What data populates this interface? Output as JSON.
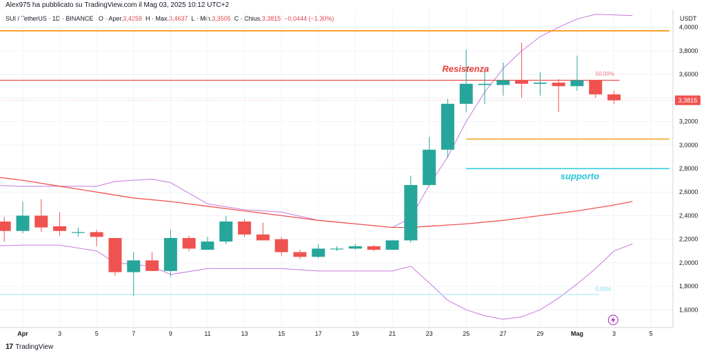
{
  "header": {
    "published_by": "Alex975 ha pubblicato su TradingView.com il Mag 03, 2025 10:12 UTC+2",
    "symbol": "SUI / TetherUS · 1D · BINANCE",
    "open_label": "O · Aper.",
    "open": "3,4259",
    "high_label": "H · Max.",
    "high": "3,4637",
    "low_label": "L · Min.",
    "low": "3,3505",
    "close_label": "C · Chius.",
    "close": "3,3815",
    "change": "−0,0444 (−1,30%)"
  },
  "currency": "USDT",
  "brand": {
    "logo": "17",
    "name": "TradingView"
  },
  "last_price_label": "3,3815",
  "colors": {
    "up": "#26a69a",
    "down": "#ef5350",
    "bb": "#c678dd",
    "ma": "#ef5350",
    "resistance": "#e53935",
    "orange": "#fb8c00",
    "support": "#26c6da",
    "grid": "#f0f3fa"
  },
  "chart_data": {
    "type": "candlestick",
    "symbol": "SUI / TetherUS",
    "timeframe": "1D",
    "ylim": [
      1.45,
      4.15
    ],
    "y_ticks": [
      1.6,
      1.8,
      2.0,
      2.2,
      2.4,
      2.6,
      2.8,
      3.0,
      3.2,
      3.4,
      3.6,
      3.8,
      4.0
    ],
    "y_tick_labels": [
      "1,6000",
      "1,8000",
      "2,0000",
      "2,2000",
      "2,4000",
      "2,6000",
      "2,8000",
      "3,0000",
      "3,2000",
      "3,4000",
      "3,6000",
      "3,8000",
      "4,0000"
    ],
    "x_index_range": [
      -2,
      34
    ],
    "x_ticks": [
      {
        "i": 0,
        "label": "Apr",
        "bold": true
      },
      {
        "i": 2,
        "label": "3"
      },
      {
        "i": 4,
        "label": "5"
      },
      {
        "i": 6,
        "label": "7"
      },
      {
        "i": 8,
        "label": "9"
      },
      {
        "i": 10,
        "label": "11"
      },
      {
        "i": 12,
        "label": "13"
      },
      {
        "i": 14,
        "label": "15"
      },
      {
        "i": 16,
        "label": "17"
      },
      {
        "i": 18,
        "label": "19"
      },
      {
        "i": 20,
        "label": "21"
      },
      {
        "i": 22,
        "label": "23"
      },
      {
        "i": 24,
        "label": "25"
      },
      {
        "i": 26,
        "label": "27"
      },
      {
        "i": 28,
        "label": "29"
      },
      {
        "i": 30,
        "label": "Mag",
        "bold": true
      },
      {
        "i": 32,
        "label": "3"
      },
      {
        "i": 34,
        "label": "5"
      }
    ],
    "candles": [
      {
        "i": -2,
        "o": 2.36,
        "h": 2.38,
        "l": 2.3,
        "c": 2.32
      },
      {
        "i": -1,
        "o": 2.35,
        "h": 2.39,
        "l": 2.18,
        "c": 2.27
      },
      {
        "i": 0,
        "o": 2.27,
        "h": 2.52,
        "l": 2.25,
        "c": 2.4
      },
      {
        "i": 1,
        "o": 2.4,
        "h": 2.54,
        "l": 2.26,
        "c": 2.3
      },
      {
        "i": 2,
        "o": 2.31,
        "h": 2.43,
        "l": 2.23,
        "c": 2.27
      },
      {
        "i": 3,
        "o": 2.26,
        "h": 2.3,
        "l": 2.22,
        "c": 2.26
      },
      {
        "i": 4,
        "o": 2.26,
        "h": 2.28,
        "l": 2.14,
        "c": 2.22
      },
      {
        "i": 5,
        "o": 2.21,
        "h": 2.21,
        "l": 1.89,
        "c": 1.92
      },
      {
        "i": 6,
        "o": 1.92,
        "h": 2.09,
        "l": 1.72,
        "c": 2.02
      },
      {
        "i": 7,
        "o": 2.02,
        "h": 2.09,
        "l": 1.93,
        "c": 1.93
      },
      {
        "i": 8,
        "o": 1.93,
        "h": 2.28,
        "l": 1.88,
        "c": 2.21
      },
      {
        "i": 9,
        "o": 2.21,
        "h": 2.23,
        "l": 2.1,
        "c": 2.12
      },
      {
        "i": 10,
        "o": 2.11,
        "h": 2.22,
        "l": 2.11,
        "c": 2.18
      },
      {
        "i": 11,
        "o": 2.18,
        "h": 2.4,
        "l": 2.16,
        "c": 2.35
      },
      {
        "i": 12,
        "o": 2.35,
        "h": 2.37,
        "l": 2.22,
        "c": 2.24
      },
      {
        "i": 13,
        "o": 2.24,
        "h": 2.34,
        "l": 2.19,
        "c": 2.19
      },
      {
        "i": 14,
        "o": 2.2,
        "h": 2.22,
        "l": 2.06,
        "c": 2.09
      },
      {
        "i": 15,
        "o": 2.09,
        "h": 2.11,
        "l": 2.03,
        "c": 2.05
      },
      {
        "i": 16,
        "o": 2.05,
        "h": 2.16,
        "l": 2.04,
        "c": 2.12
      },
      {
        "i": 17,
        "o": 2.12,
        "h": 2.14,
        "l": 2.1,
        "c": 2.12
      },
      {
        "i": 18,
        "o": 2.12,
        "h": 2.16,
        "l": 2.11,
        "c": 2.14
      },
      {
        "i": 19,
        "o": 2.14,
        "h": 2.15,
        "l": 2.1,
        "c": 2.11
      },
      {
        "i": 20,
        "o": 2.11,
        "h": 2.19,
        "l": 2.11,
        "c": 2.19
      },
      {
        "i": 21,
        "o": 2.19,
        "h": 2.74,
        "l": 2.17,
        "c": 2.66
      },
      {
        "i": 22,
        "o": 2.66,
        "h": 3.07,
        "l": 2.65,
        "c": 2.96
      },
      {
        "i": 23,
        "o": 2.96,
        "h": 3.39,
        "l": 2.89,
        "c": 3.35
      },
      {
        "i": 24,
        "o": 3.35,
        "h": 3.81,
        "l": 3.28,
        "c": 3.52
      },
      {
        "i": 25,
        "o": 3.51,
        "h": 3.65,
        "l": 3.35,
        "c": 3.52
      },
      {
        "i": 26,
        "o": 3.51,
        "h": 3.7,
        "l": 3.42,
        "c": 3.55
      },
      {
        "i": 27,
        "o": 3.55,
        "h": 3.87,
        "l": 3.4,
        "c": 3.52
      },
      {
        "i": 28,
        "o": 3.52,
        "h": 3.62,
        "l": 3.42,
        "c": 3.53
      },
      {
        "i": 29,
        "o": 3.53,
        "h": 3.56,
        "l": 3.28,
        "c": 3.5
      },
      {
        "i": 30,
        "o": 3.5,
        "h": 3.76,
        "l": 3.46,
        "c": 3.55
      },
      {
        "i": 31,
        "o": 3.55,
        "h": 3.55,
        "l": 3.4,
        "c": 3.43
      },
      {
        "i": 32,
        "o": 3.43,
        "h": 3.46,
        "l": 3.35,
        "c": 3.38
      }
    ],
    "moving_average": [
      [
        -2,
        2.74
      ],
      [
        0,
        2.7
      ],
      [
        2,
        2.65
      ],
      [
        4,
        2.6
      ],
      [
        6,
        2.55
      ],
      [
        8,
        2.52
      ],
      [
        10,
        2.48
      ],
      [
        12,
        2.44
      ],
      [
        14,
        2.4
      ],
      [
        16,
        2.36
      ],
      [
        18,
        2.33
      ],
      [
        20,
        2.3
      ],
      [
        21,
        2.3
      ],
      [
        22,
        2.31
      ],
      [
        24,
        2.33
      ],
      [
        26,
        2.36
      ],
      [
        28,
        2.4
      ],
      [
        30,
        2.44
      ],
      [
        32,
        2.49
      ],
      [
        33,
        2.52
      ]
    ],
    "bollinger_upper": [
      [
        -2,
        2.66
      ],
      [
        0,
        2.65
      ],
      [
        2,
        2.65
      ],
      [
        4,
        2.65
      ],
      [
        5,
        2.69
      ],
      [
        7,
        2.71
      ],
      [
        8,
        2.68
      ],
      [
        10,
        2.5
      ],
      [
        12,
        2.45
      ],
      [
        14,
        2.43
      ],
      [
        16,
        2.36
      ],
      [
        18,
        2.33
      ],
      [
        20,
        2.3
      ],
      [
        21,
        2.38
      ],
      [
        22,
        2.66
      ],
      [
        23,
        2.9
      ],
      [
        24,
        3.2
      ],
      [
        25,
        3.45
      ],
      [
        26,
        3.65
      ],
      [
        27,
        3.8
      ],
      [
        28,
        3.92
      ],
      [
        29,
        4.0
      ],
      [
        30,
        4.07
      ],
      [
        31,
        4.11
      ],
      [
        33,
        4.1
      ]
    ],
    "bollinger_lower": [
      [
        -2,
        2.14
      ],
      [
        0,
        2.15
      ],
      [
        2,
        2.15
      ],
      [
        4,
        2.1
      ],
      [
        5,
        2.0
      ],
      [
        7,
        1.97
      ],
      [
        8,
        1.9
      ],
      [
        10,
        1.95
      ],
      [
        12,
        1.95
      ],
      [
        14,
        1.95
      ],
      [
        16,
        1.93
      ],
      [
        18,
        1.93
      ],
      [
        20,
        1.93
      ],
      [
        21,
        1.97
      ],
      [
        22,
        1.83
      ],
      [
        23,
        1.68
      ],
      [
        24,
        1.6
      ],
      [
        25,
        1.55
      ],
      [
        26,
        1.52
      ],
      [
        27,
        1.54
      ],
      [
        28,
        1.6
      ],
      [
        29,
        1.7
      ],
      [
        30,
        1.82
      ],
      [
        31,
        1.95
      ],
      [
        32,
        2.1
      ],
      [
        33,
        2.16
      ]
    ],
    "horizontal_lines": [
      {
        "name": "resistance-line",
        "y": 3.55,
        "x_start": -2,
        "x_end": 32.3,
        "color": "#e53935",
        "width": 1.2
      },
      {
        "name": "orange-level-line",
        "y": 3.97,
        "x_start": -2,
        "x_end": 35,
        "color": "#fb8c00",
        "width": 1.6
      },
      {
        "name": "orange-short-line",
        "y": 3.05,
        "x_start": 24,
        "x_end": 35,
        "color": "#f9a825",
        "width": 1.6
      },
      {
        "name": "support-line",
        "y": 2.8,
        "x_start": 24,
        "x_end": 35,
        "color": "#26c6da",
        "width": 1.6
      },
      {
        "name": "fib-0-line",
        "y": 1.73,
        "x_start": -2,
        "x_end": 31.2,
        "color": "#b2ebf2",
        "width": 1.2
      }
    ],
    "annotations": [
      {
        "name": "resistenza-label",
        "text": "Resistenza",
        "x": 22.7,
        "y": 3.62,
        "color": "#e53935",
        "italic": true,
        "size": 13
      },
      {
        "name": "supporto-label",
        "text": "supporto",
        "x": 29.1,
        "y": 2.71,
        "color": "#26c6da",
        "italic": true,
        "size": 13
      },
      {
        "name": "fib-50-label",
        "text": "50,00%",
        "x": 31.0,
        "y": 3.59,
        "color": "#e57373",
        "italic": false,
        "size": 8
      },
      {
        "name": "fib-0-label",
        "text": "0,00%",
        "x": 31.0,
        "y": 1.76,
        "color": "#80deea",
        "italic": false,
        "size": 8
      }
    ]
  }
}
